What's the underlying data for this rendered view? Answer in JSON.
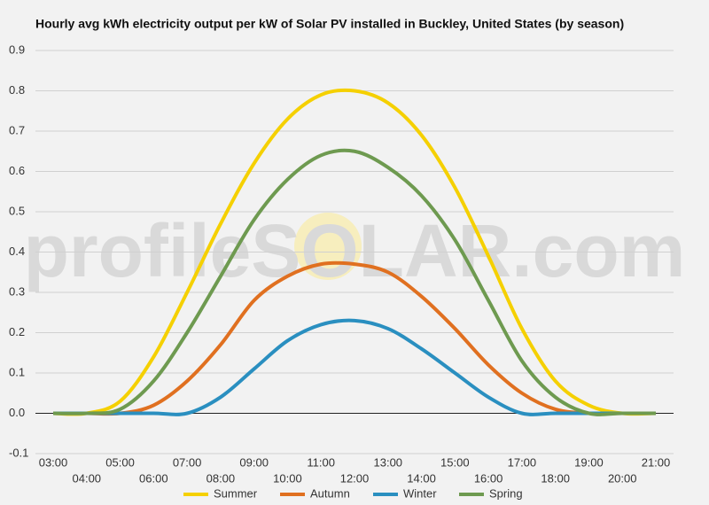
{
  "chart_data": {
    "type": "line",
    "title": "Hourly avg kWh electricity output per kW of Solar PV installed in Buckley, United States (by season)",
    "watermark": "profileSOLAR.com",
    "categories": [
      "03:00",
      "04:00",
      "05:00",
      "06:00",
      "07:00",
      "08:00",
      "09:00",
      "10:00",
      "11:00",
      "12:00",
      "13:00",
      "14:00",
      "15:00",
      "16:00",
      "17:00",
      "18:00",
      "19:00",
      "20:00",
      "21:00"
    ],
    "series": [
      {
        "name": "Summer",
        "color": "#f5d000",
        "values": [
          0,
          0,
          0.03,
          0.14,
          0.3,
          0.47,
          0.62,
          0.73,
          0.79,
          0.8,
          0.77,
          0.69,
          0.56,
          0.39,
          0.21,
          0.08,
          0.02,
          0,
          0
        ]
      },
      {
        "name": "Autumn",
        "color": "#e07020",
        "values": [
          0,
          0,
          0,
          0.02,
          0.08,
          0.17,
          0.28,
          0.34,
          0.37,
          0.37,
          0.35,
          0.29,
          0.21,
          0.12,
          0.05,
          0.01,
          0,
          0,
          0
        ]
      },
      {
        "name": "Winter",
        "color": "#2a8fc0",
        "values": [
          0,
          0,
          0,
          0,
          0,
          0.04,
          0.11,
          0.18,
          0.22,
          0.23,
          0.21,
          0.16,
          0.1,
          0.04,
          0,
          0,
          0,
          0,
          0
        ]
      },
      {
        "name": "Spring",
        "color": "#6e9a50",
        "values": [
          0,
          0,
          0.01,
          0.08,
          0.2,
          0.34,
          0.48,
          0.58,
          0.64,
          0.65,
          0.61,
          0.54,
          0.43,
          0.28,
          0.13,
          0.04,
          0,
          0,
          0
        ]
      }
    ],
    "ylim": [
      -0.1,
      0.9
    ],
    "yticks": [
      -0.1,
      {
        "value": 0,
        "label": "0.0"
      },
      0.1,
      0.2,
      0.3,
      0.4,
      0.5,
      0.6,
      0.7,
      0.8,
      0.9
    ],
    "grid": true,
    "legend": "bottom"
  }
}
